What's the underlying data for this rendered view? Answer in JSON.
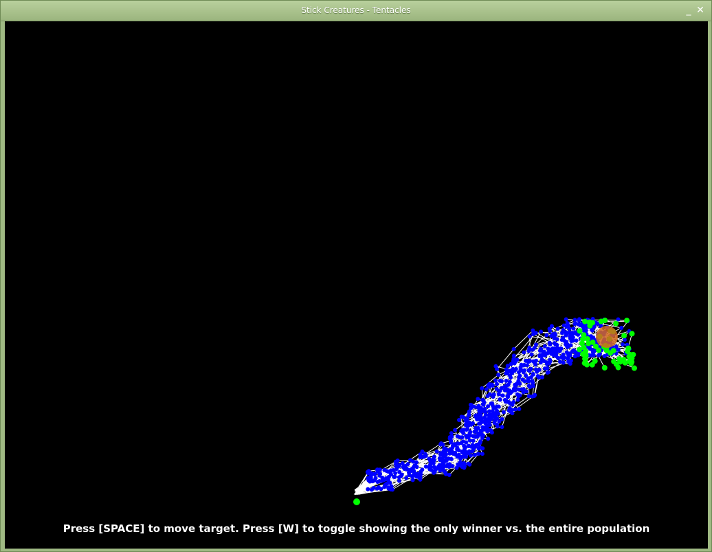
{
  "window": {
    "title": "Stick Creatures - Tentacles",
    "minimize_symbol": "_",
    "close_symbol": "✕"
  },
  "scene": {
    "background_color": "#000000",
    "joint_color": "#0000ff",
    "stick_color": "#ffffff",
    "tip_color": "#00ff00",
    "target_color": "#d2691e"
  },
  "hint": {
    "text": "Press [SPACE] to move target.  Press [W] to toggle showing the only winner vs. the entire population"
  }
}
